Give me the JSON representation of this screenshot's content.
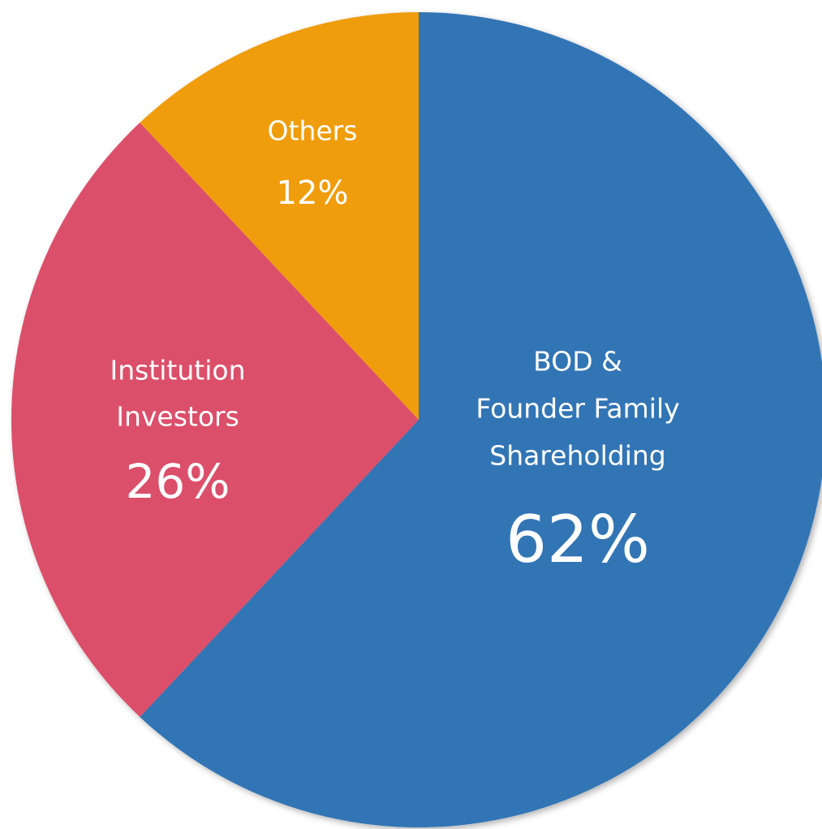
{
  "chart_data": {
    "type": "pie",
    "categories": [
      [
        "BOD &",
        "Founder Family",
        "Shareholding"
      ],
      [
        "Institution",
        "Investors"
      ],
      [
        "Others"
      ]
    ],
    "values": [
      62,
      26,
      12
    ],
    "value_labels": [
      "62%",
      "26%",
      "12%"
    ],
    "colors": [
      "#3274b5",
      "#dc4f6b",
      "#f09d0c"
    ]
  }
}
